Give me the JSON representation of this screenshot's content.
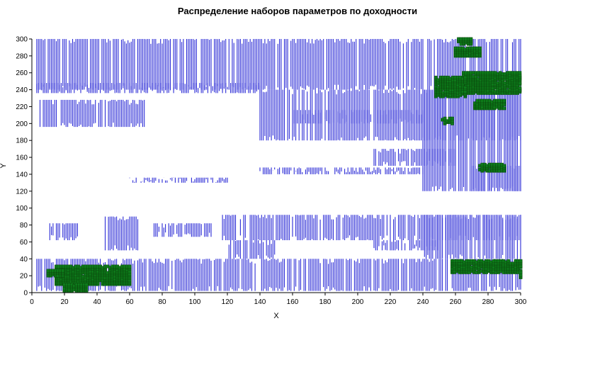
{
  "chart_data": {
    "type": "scatter",
    "title": "Распределение наборов параметров по доходности",
    "xlabel": "X",
    "ylabel": "Y",
    "xlim": [
      0,
      300
    ],
    "ylim": [
      0,
      300
    ],
    "xticks": [
      "0",
      "20",
      "40",
      "60",
      "80",
      "100",
      "120",
      "140",
      "160",
      "180",
      "200",
      "220",
      "240",
      "260",
      "280",
      "300"
    ],
    "yticks": [
      "0",
      "20",
      "40",
      "60",
      "80",
      "100",
      "120",
      "140",
      "160",
      "180",
      "200",
      "220",
      "240",
      "260",
      "280",
      "300"
    ],
    "grid": false,
    "legend": "none",
    "colors": {
      "series_a": "#2b2bd6",
      "series_b": "#0d7a1a",
      "series_b_edge": "#0a3d0a"
    },
    "series": [
      {
        "values_note": "",
        "regions": [
          [
            3,
            300,
            240,
            300
          ],
          [
            3,
            140,
            236,
            248
          ],
          [
            5,
            70,
            196,
            228
          ],
          [
            140,
            300,
            180,
            240
          ],
          [
            160,
            240,
            200,
            216
          ],
          [
            240,
            300,
            120,
            240
          ],
          [
            210,
            260,
            150,
            170
          ],
          [
            270,
            300,
            120,
            150
          ],
          [
            3,
            300,
            2,
            40
          ],
          [
            115,
            300,
            62,
            92
          ],
          [
            240,
            300,
            40,
            92
          ],
          [
            120,
            150,
            40,
            62
          ],
          [
            210,
            250,
            50,
            62
          ],
          [
            10,
            28,
            62,
            82
          ],
          [
            45,
            65,
            50,
            90
          ],
          [
            75,
            110,
            66,
            82
          ],
          [
            140,
            240,
            140,
            148
          ],
          [
            60,
            120,
            130,
            136
          ]
        ]
      },
      {
        "regions": [
          [
            265,
            300,
            236,
            260
          ],
          [
            248,
            266,
            232,
            255
          ],
          [
            272,
            290,
            218,
            228
          ],
          [
            260,
            275,
            280,
            290
          ],
          [
            262,
            270,
            294,
            300
          ],
          [
            275,
            290,
            144,
            152
          ],
          [
            252,
            258,
            200,
            206
          ],
          [
            258,
            300,
            24,
            38
          ],
          [
            300,
            300,
            18,
            24
          ],
          [
            15,
            60,
            10,
            32
          ],
          [
            20,
            34,
            2,
            10
          ],
          [
            10,
            20,
            20,
            26
          ]
        ]
      }
    ]
  }
}
